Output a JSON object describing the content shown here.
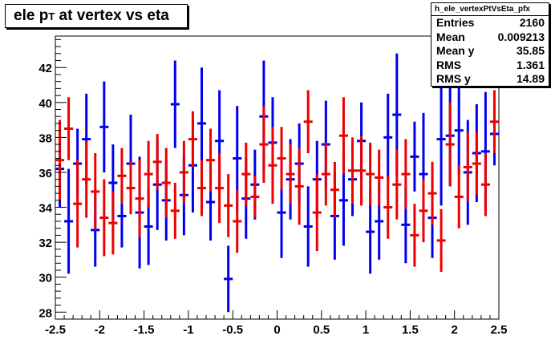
{
  "chart_data": {
    "type": "scatter",
    "title": "ele p_T at vertex vs eta",
    "xlabel": "",
    "ylabel": "",
    "xlim": [
      -2.5,
      2.5
    ],
    "ylim": [
      27.6,
      43.8
    ],
    "x_ticks": [
      -2.5,
      -2,
      -1.5,
      -1,
      -0.5,
      0,
      0.5,
      1,
      1.5,
      2,
      2.5
    ],
    "y_ticks": [
      28,
      30,
      32,
      34,
      36,
      38,
      40,
      42
    ],
    "x_tick_labels": [
      "-2.5",
      "-2",
      "-1.5",
      "-1",
      "-0.5",
      "0",
      "0.5",
      "1",
      "1.5",
      "2",
      "2.5"
    ],
    "y_tick_labels": [
      "28",
      "30",
      "32",
      "34",
      "36",
      "38",
      "40",
      "42"
    ],
    "bin_width": 0.1,
    "series": [
      {
        "color": "#0000ee",
        "points": [
          {
            "x": -2.45,
            "y": 36.2,
            "err": 2.2
          },
          {
            "x": -2.35,
            "y": 33.2,
            "err": 3.0
          },
          {
            "x": -2.25,
            "y": 36.5,
            "err": 2.0
          },
          {
            "x": -2.15,
            "y": 37.9,
            "err": 2.6
          },
          {
            "x": -2.05,
            "y": 32.7,
            "err": 2.1
          },
          {
            "x": -1.95,
            "y": 38.6,
            "err": 2.6
          },
          {
            "x": -1.85,
            "y": 35.4,
            "err": 2.2
          },
          {
            "x": -1.75,
            "y": 33.5,
            "err": 1.8
          },
          {
            "x": -1.65,
            "y": 36.5,
            "err": 2.8
          },
          {
            "x": -1.55,
            "y": 33.7,
            "err": 3.2
          },
          {
            "x": -1.45,
            "y": 32.9,
            "err": 2.2
          },
          {
            "x": -1.35,
            "y": 35.3,
            "err": 2.6
          },
          {
            "x": -1.25,
            "y": 34.4,
            "err": 2.3
          },
          {
            "x": -1.15,
            "y": 39.9,
            "err": 2.5
          },
          {
            "x": -1.05,
            "y": 34.7,
            "err": 2.3
          },
          {
            "x": -0.95,
            "y": 36.4,
            "err": 2.7
          },
          {
            "x": -0.85,
            "y": 38.8,
            "err": 3.2
          },
          {
            "x": -0.75,
            "y": 34.3,
            "err": 2.2
          },
          {
            "x": -0.65,
            "y": 37.8,
            "err": 2.9
          },
          {
            "x": -0.55,
            "y": 29.9,
            "err": 1.9
          },
          {
            "x": -0.45,
            "y": 36.8,
            "err": 3.0
          },
          {
            "x": -0.35,
            "y": 34.5,
            "err": 2.3
          },
          {
            "x": -0.25,
            "y": 35.3,
            "err": 2.0
          },
          {
            "x": -0.15,
            "y": 39.2,
            "err": 3.2
          },
          {
            "x": -0.05,
            "y": 37.7,
            "err": 2.6
          },
          {
            "x": 0.05,
            "y": 33.7,
            "err": 2.6
          },
          {
            "x": 0.15,
            "y": 35.6,
            "err": 2.3
          },
          {
            "x": 0.25,
            "y": 36.5,
            "err": 2.3
          },
          {
            "x": 0.35,
            "y": 32.9,
            "err": 2.3
          },
          {
            "x": 0.45,
            "y": 35.6,
            "err": 2.2
          },
          {
            "x": 0.55,
            "y": 37.6,
            "err": 2.5
          },
          {
            "x": 0.65,
            "y": 33.5,
            "err": 2.5
          },
          {
            "x": 0.75,
            "y": 34.4,
            "err": 2.6
          },
          {
            "x": 0.85,
            "y": 35.6,
            "err": 2.1
          },
          {
            "x": 0.95,
            "y": 37.8,
            "err": 2.2
          },
          {
            "x": 1.05,
            "y": 32.6,
            "err": 2.4
          },
          {
            "x": 1.15,
            "y": 33.2,
            "err": 2.2
          },
          {
            "x": 1.25,
            "y": 38.0,
            "err": 2.5
          },
          {
            "x": 1.35,
            "y": 39.3,
            "err": 3.5
          },
          {
            "x": 1.45,
            "y": 33.0,
            "err": 2.2
          },
          {
            "x": 1.55,
            "y": 36.9,
            "err": 2.0
          },
          {
            "x": 1.65,
            "y": 35.9,
            "err": 3.5
          },
          {
            "x": 1.75,
            "y": 33.4,
            "err": 2.3
          },
          {
            "x": 1.85,
            "y": 37.9,
            "err": 3.8
          },
          {
            "x": 1.95,
            "y": 38.1,
            "err": 2.9
          },
          {
            "x": 2.05,
            "y": 38.4,
            "err": 2.5
          },
          {
            "x": 2.15,
            "y": 36.0,
            "err": 3.0
          },
          {
            "x": 2.25,
            "y": 37.1,
            "err": 2.8
          },
          {
            "x": 2.35,
            "y": 37.2,
            "err": 3.4
          },
          {
            "x": 2.45,
            "y": 38.2,
            "err": 1.8
          }
        ]
      },
      {
        "color": "#ee0000",
        "points": [
          {
            "x": -2.45,
            "y": 36.7,
            "err": 2.3
          },
          {
            "x": -2.35,
            "y": 38.5,
            "err": 1.8
          },
          {
            "x": -2.25,
            "y": 34.2,
            "err": 2.5
          },
          {
            "x": -2.15,
            "y": 35.6,
            "err": 2.2
          },
          {
            "x": -2.05,
            "y": 34.9,
            "err": 2.2
          },
          {
            "x": -1.95,
            "y": 33.4,
            "err": 2.2
          },
          {
            "x": -1.85,
            "y": 33.1,
            "err": 1.8
          },
          {
            "x": -1.75,
            "y": 35.8,
            "err": 1.6
          },
          {
            "x": -1.65,
            "y": 35.1,
            "err": 1.5
          },
          {
            "x": -1.55,
            "y": 34.5,
            "err": 2.2
          },
          {
            "x": -1.45,
            "y": 35.9,
            "err": 1.9
          },
          {
            "x": -1.35,
            "y": 36.6,
            "err": 1.6
          },
          {
            "x": -1.25,
            "y": 35.4,
            "err": 2.0
          },
          {
            "x": -1.15,
            "y": 33.8,
            "err": 1.6
          },
          {
            "x": -1.05,
            "y": 36.0,
            "err": 1.8
          },
          {
            "x": -0.95,
            "y": 37.9,
            "err": 1.6
          },
          {
            "x": -0.85,
            "y": 35.1,
            "err": 1.6
          },
          {
            "x": -0.75,
            "y": 36.7,
            "err": 1.8
          },
          {
            "x": -0.65,
            "y": 35.1,
            "err": 2.0
          },
          {
            "x": -0.55,
            "y": 34.1,
            "err": 1.8
          },
          {
            "x": -0.45,
            "y": 33.2,
            "err": 1.8
          },
          {
            "x": -0.35,
            "y": 35.9,
            "err": 1.8
          },
          {
            "x": -0.25,
            "y": 34.6,
            "err": 1.2
          },
          {
            "x": -0.15,
            "y": 37.6,
            "err": 2.2
          },
          {
            "x": -0.05,
            "y": 36.4,
            "err": 2.2
          },
          {
            "x": 0.05,
            "y": 36.8,
            "err": 1.8
          },
          {
            "x": 0.15,
            "y": 35.9,
            "err": 1.7
          },
          {
            "x": 0.25,
            "y": 35.2,
            "err": 2.2
          },
          {
            "x": 0.35,
            "y": 38.9,
            "err": 1.8
          },
          {
            "x": 0.45,
            "y": 33.7,
            "err": 2.2
          },
          {
            "x": 0.55,
            "y": 35.9,
            "err": 1.8
          },
          {
            "x": 0.65,
            "y": 35.0,
            "err": 1.6
          },
          {
            "x": 0.75,
            "y": 38.1,
            "err": 2.2
          },
          {
            "x": 0.85,
            "y": 36.1,
            "err": 1.9
          },
          {
            "x": 0.95,
            "y": 36.1,
            "err": 2.0
          },
          {
            "x": 1.05,
            "y": 35.9,
            "err": 1.8
          },
          {
            "x": 1.15,
            "y": 35.7,
            "err": 1.6
          },
          {
            "x": 1.25,
            "y": 34.0,
            "err": 1.8
          },
          {
            "x": 1.35,
            "y": 35.3,
            "err": 2.0
          },
          {
            "x": 1.45,
            "y": 35.9,
            "err": 2.0
          },
          {
            "x": 1.55,
            "y": 32.4,
            "err": 1.8
          },
          {
            "x": 1.65,
            "y": 33.8,
            "err": 1.8
          },
          {
            "x": 1.75,
            "y": 34.8,
            "err": 1.8
          },
          {
            "x": 1.85,
            "y": 32.1,
            "err": 1.8
          },
          {
            "x": 1.95,
            "y": 37.6,
            "err": 2.4
          },
          {
            "x": 2.05,
            "y": 34.6,
            "err": 1.8
          },
          {
            "x": 2.15,
            "y": 36.3,
            "err": 2.0
          },
          {
            "x": 2.25,
            "y": 36.5,
            "err": 1.8
          },
          {
            "x": 2.35,
            "y": 35.3,
            "err": 1.8
          },
          {
            "x": 2.45,
            "y": 38.9,
            "err": 1.8
          }
        ]
      }
    ]
  },
  "stats": {
    "name": "h_ele_vertexPtVsEta_pfx",
    "rows": [
      {
        "label": "Entries",
        "value": "2160"
      },
      {
        "label": "Mean",
        "value": "0.009213"
      },
      {
        "label": "Mean y",
        "value": "35.85"
      },
      {
        "label": "RMS",
        "value": "1.361"
      },
      {
        "label": "RMS y",
        "value": "14.89"
      }
    ]
  },
  "title_parts": {
    "pre": "ele p",
    "sub": "T",
    "post": " at vertex vs eta"
  }
}
